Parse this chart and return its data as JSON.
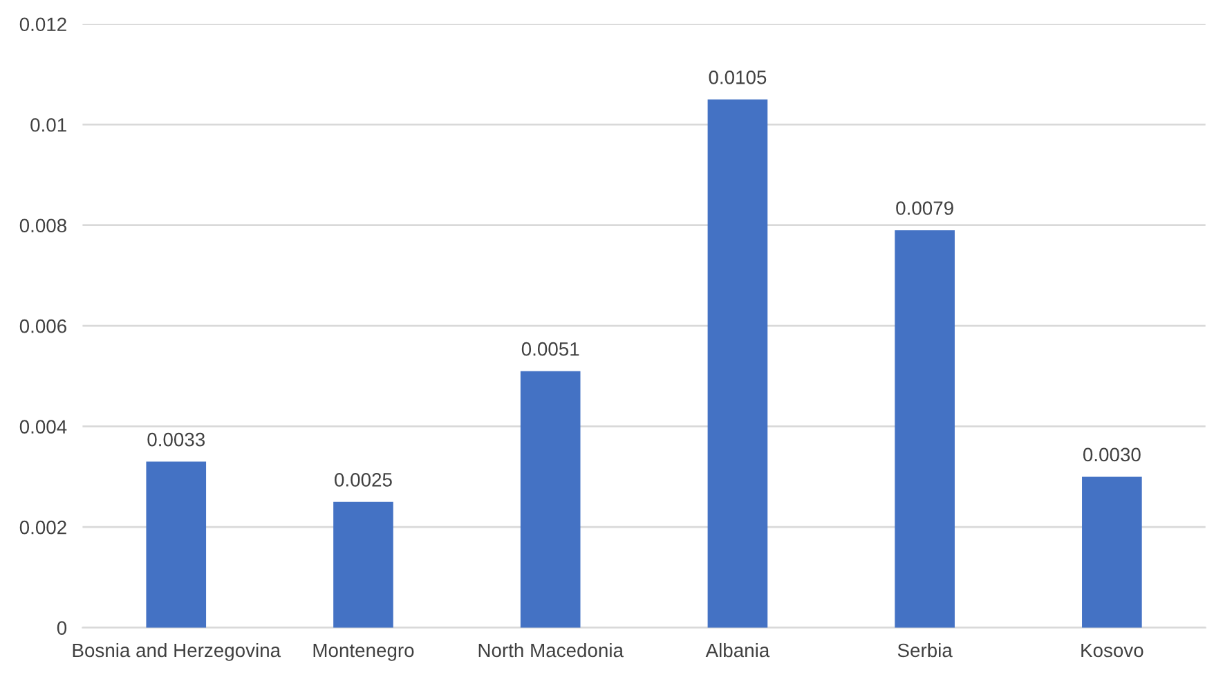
{
  "chart_data": {
    "type": "bar",
    "categories": [
      "Bosnia and Herzegovina",
      "Montenegro",
      "North Macedonia",
      "Albania",
      "Serbia",
      "Kosovo"
    ],
    "values": [
      0.0033,
      0.0025,
      0.0051,
      0.0105,
      0.0079,
      0.003
    ],
    "value_labels": [
      "0.0033",
      "0.0025",
      "0.0051",
      "0.0105",
      "0.0079",
      "0.0030"
    ],
    "color": "#4472c4",
    "ylim": [
      0,
      0.012
    ],
    "yticks": [
      0,
      0.002,
      0.004,
      0.006,
      0.008,
      0.01,
      0.012
    ],
    "grid": "y"
  }
}
